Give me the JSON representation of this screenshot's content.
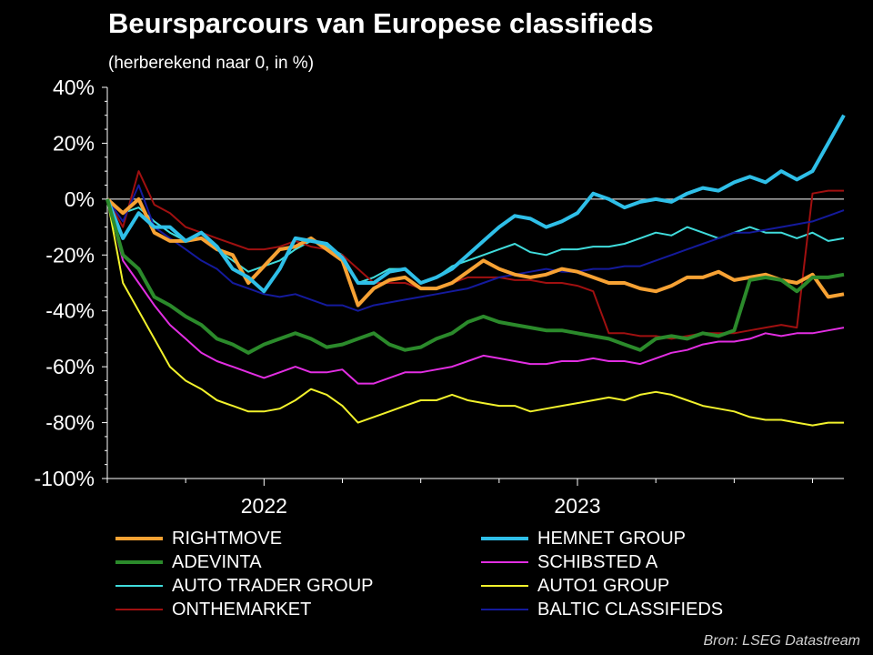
{
  "title": "Beursparcours van Europese classifieds",
  "subtitle": "(herberekend naar 0, in %)",
  "source": "Bron: LSEG Datastream",
  "chart_data": {
    "type": "line",
    "ylim": [
      -100,
      40
    ],
    "yticks": [
      40,
      20,
      0,
      -20,
      -40,
      -60,
      -80,
      -100
    ],
    "ytick_labels": [
      "40%",
      "20%",
      "0%",
      "-20%",
      "-40%",
      "-60%",
      "-80%",
      "-100%"
    ],
    "xlim": [
      2021.5,
      2023.85
    ],
    "xticks": [
      {
        "label": "2022",
        "pos": 2022.0
      },
      {
        "label": "2023",
        "pos": 2023.0
      }
    ],
    "grid": false,
    "legend_position": "bottom",
    "x": [
      2021.5,
      2021.55,
      2021.6,
      2021.65,
      2021.7,
      2021.75,
      2021.8,
      2021.85,
      2021.9,
      2021.95,
      2022.0,
      2022.05,
      2022.1,
      2022.15,
      2022.2,
      2022.25,
      2022.3,
      2022.35,
      2022.4,
      2022.45,
      2022.5,
      2022.55,
      2022.6,
      2022.65,
      2022.7,
      2022.75,
      2022.8,
      2022.85,
      2022.9,
      2022.95,
      2023.0,
      2023.05,
      2023.1,
      2023.15,
      2023.2,
      2023.25,
      2023.3,
      2023.35,
      2023.4,
      2023.45,
      2023.5,
      2023.55,
      2023.6,
      2023.65,
      2023.7,
      2023.75,
      2023.8,
      2023.85
    ],
    "series": [
      {
        "name": "RIGHTMOVE",
        "color": "#f7a234",
        "width": 4,
        "values": [
          0,
          -5,
          0,
          -12,
          -15,
          -15,
          -14,
          -18,
          -20,
          -30,
          -24,
          -18,
          -17,
          -14,
          -18,
          -22,
          -38,
          -32,
          -29,
          -28,
          -32,
          -32,
          -30,
          -26,
          -22,
          -25,
          -27,
          -28,
          -27,
          -25,
          -26,
          -28,
          -30,
          -30,
          -32,
          -33,
          -31,
          -28,
          -28,
          -26,
          -29,
          -28,
          -27,
          -29,
          -30,
          -27,
          -35,
          -34
        ]
      },
      {
        "name": "HEMNET GROUP",
        "color": "#2fbfe8",
        "width": 4,
        "values": [
          0,
          -14,
          -5,
          -10,
          -10,
          -15,
          -12,
          -17,
          -25,
          -28,
          -33,
          -25,
          -14,
          -15,
          -16,
          -21,
          -30,
          -30,
          -26,
          -25,
          -30,
          -28,
          -25,
          -20,
          -15,
          -10,
          -6,
          -7,
          -10,
          -8,
          -5,
          2,
          0,
          -3,
          -1,
          0,
          -1,
          2,
          4,
          3,
          6,
          8,
          6,
          10,
          7,
          10,
          20,
          30
        ]
      },
      {
        "name": "ADEVINTA",
        "color": "#2b8a2b",
        "width": 4,
        "values": [
          0,
          -20,
          -25,
          -35,
          -38,
          -42,
          -45,
          -50,
          -52,
          -55,
          -52,
          -50,
          -48,
          -50,
          -53,
          -52,
          -50,
          -48,
          -52,
          -54,
          -53,
          -50,
          -48,
          -44,
          -42,
          -44,
          -45,
          -46,
          -47,
          -47,
          -48,
          -49,
          -50,
          -52,
          -54,
          -50,
          -49,
          -50,
          -48,
          -49,
          -47,
          -29,
          -28,
          -29,
          -33,
          -28,
          -28,
          -27
        ]
      },
      {
        "name": "SCHIBSTED A",
        "color": "#e22ee2",
        "width": 2,
        "values": [
          0,
          -22,
          -30,
          -38,
          -45,
          -50,
          -55,
          -58,
          -60,
          -62,
          -64,
          -62,
          -60,
          -62,
          -62,
          -61,
          -66,
          -66,
          -64,
          -62,
          -62,
          -61,
          -60,
          -58,
          -56,
          -57,
          -58,
          -59,
          -59,
          -58,
          -58,
          -57,
          -58,
          -58,
          -59,
          -57,
          -55,
          -54,
          -52,
          -51,
          -51,
          -50,
          -48,
          -49,
          -48,
          -48,
          -47,
          -46
        ]
      },
      {
        "name": "AUTO TRADER GROUP",
        "color": "#40dcdc",
        "width": 2,
        "values": [
          0,
          -5,
          -3,
          -8,
          -12,
          -15,
          -14,
          -18,
          -22,
          -26,
          -24,
          -22,
          -18,
          -15,
          -17,
          -20,
          -30,
          -28,
          -25,
          -25,
          -30,
          -28,
          -24,
          -22,
          -20,
          -18,
          -16,
          -19,
          -20,
          -18,
          -18,
          -17,
          -17,
          -16,
          -14,
          -12,
          -13,
          -10,
          -12,
          -14,
          -12,
          -10,
          -12,
          -12,
          -14,
          -12,
          -15,
          -14
        ]
      },
      {
        "name": "AUTO1 GROUP",
        "color": "#f2f22c",
        "width": 2,
        "values": [
          0,
          -30,
          -40,
          -50,
          -60,
          -65,
          -68,
          -72,
          -74,
          -76,
          -76,
          -75,
          -72,
          -68,
          -70,
          -74,
          -80,
          -78,
          -76,
          -74,
          -72,
          -72,
          -70,
          -72,
          -73,
          -74,
          -74,
          -76,
          -75,
          -74,
          -73,
          -72,
          -71,
          -72,
          -70,
          -69,
          -70,
          -72,
          -74,
          -75,
          -76,
          -78,
          -79,
          -79,
          -80,
          -81,
          -80,
          -80
        ]
      },
      {
        "name": "ONTHEMARKET",
        "color": "#a01010",
        "width": 2,
        "values": [
          0,
          -10,
          10,
          -2,
          -5,
          -10,
          -12,
          -14,
          -16,
          -18,
          -18,
          -17,
          -15,
          -17,
          -18,
          -20,
          -25,
          -30,
          -30,
          -30,
          -32,
          -32,
          -30,
          -28,
          -28,
          -28,
          -29,
          -29,
          -30,
          -30,
          -31,
          -33,
          -48,
          -48,
          -49,
          -49,
          -50,
          -49,
          -48,
          -48,
          -48,
          -47,
          -46,
          -45,
          -46,
          2,
          3,
          3
        ]
      },
      {
        "name": "BALTIC CLASSIFIEDS",
        "color": "#141a9c",
        "width": 2,
        "values": [
          0,
          -8,
          5,
          -10,
          -14,
          -18,
          -22,
          -25,
          -30,
          -32,
          -34,
          -35,
          -34,
          -36,
          -38,
          -38,
          -40,
          -38,
          -37,
          -36,
          -35,
          -34,
          -33,
          -32,
          -30,
          -28,
          -27,
          -26,
          -25,
          -26,
          -26,
          -25,
          -25,
          -24,
          -24,
          -22,
          -20,
          -18,
          -16,
          -14,
          -12,
          -12,
          -11,
          -10,
          -9,
          -8,
          -6,
          -4
        ]
      }
    ]
  }
}
